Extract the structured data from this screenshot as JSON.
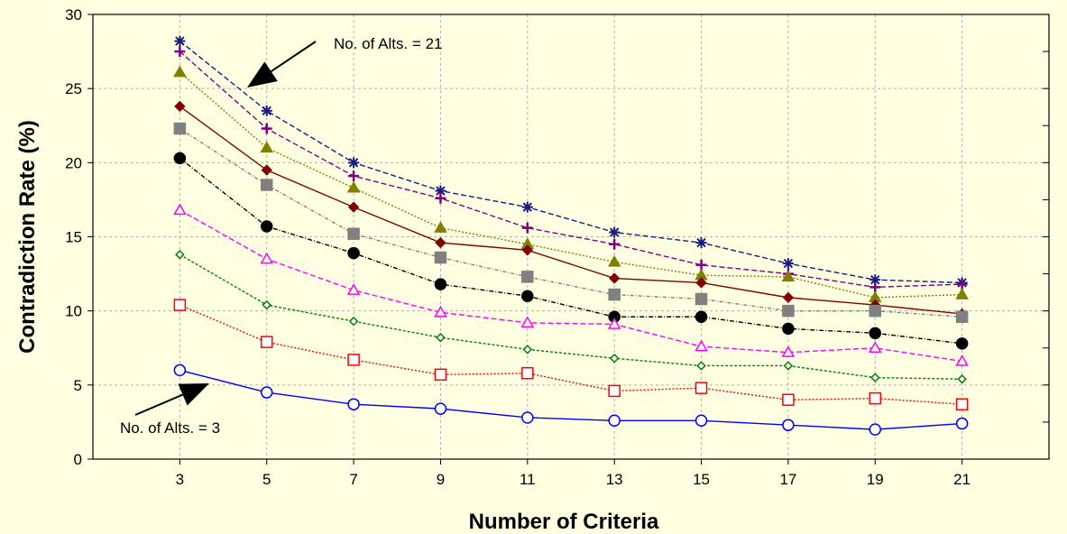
{
  "chart_data": {
    "type": "line",
    "xlabel": "Number of Criteria",
    "ylabel": "Contradiction Rate (%)",
    "x": [
      3,
      5,
      7,
      9,
      11,
      13,
      15,
      17,
      19,
      21
    ],
    "xlim": [
      1,
      23
    ],
    "ylim": [
      0,
      30
    ],
    "yticks": [
      0,
      5,
      10,
      15,
      20,
      25,
      30
    ],
    "grid": true,
    "series": [
      {
        "values": [
          28.2,
          23.5,
          20.0,
          18.1,
          17.0,
          15.3,
          14.6,
          13.2,
          12.1,
          11.9
        ],
        "color": "#1a1a80",
        "marker": "asterisk",
        "dash": "6 3"
      },
      {
        "values": [
          27.5,
          22.3,
          19.1,
          17.6,
          15.6,
          14.5,
          13.1,
          12.5,
          11.6,
          11.8
        ],
        "color": "#800080",
        "marker": "plus",
        "dash": "6 3"
      },
      {
        "values": [
          26.1,
          21.0,
          18.3,
          15.6,
          14.5,
          13.3,
          12.4,
          12.3,
          10.9,
          11.1
        ],
        "color": "#808000",
        "marker": "triangle",
        "dash": "2 2"
      },
      {
        "values": [
          23.8,
          19.5,
          17.0,
          14.6,
          14.1,
          12.2,
          11.9,
          10.9,
          10.4,
          9.8
        ],
        "color": "#800000",
        "marker": "diamond",
        "dash": ""
      },
      {
        "values": [
          22.3,
          18.5,
          15.2,
          13.6,
          12.3,
          11.1,
          10.8,
          10.0,
          10.0,
          9.6
        ],
        "color": "#808080",
        "marker": "square",
        "dash": "4 2 1 2"
      },
      {
        "values": [
          20.3,
          15.7,
          13.9,
          11.8,
          11.0,
          9.6,
          9.6,
          8.8,
          8.5,
          7.8
        ],
        "color": "#000000",
        "marker": "circle",
        "dash": "5 2 1 2"
      },
      {
        "values": [
          16.8,
          13.5,
          11.4,
          9.9,
          9.2,
          9.1,
          7.6,
          7.2,
          7.5,
          6.6
        ],
        "color": "#ff00ff",
        "marker": "triangle-open",
        "dash": "6 3"
      },
      {
        "values": [
          13.8,
          10.4,
          9.3,
          8.2,
          7.4,
          6.8,
          6.3,
          6.3,
          5.5,
          5.4
        ],
        "color": "#008000",
        "marker": "diamond-open",
        "dash": "3 2"
      },
      {
        "values": [
          10.4,
          7.9,
          6.7,
          5.7,
          5.8,
          4.6,
          4.8,
          4.0,
          4.1,
          3.7
        ],
        "color": "#ff0000",
        "marker": "square-open",
        "dash": "2 2"
      },
      {
        "values": [
          6.0,
          4.5,
          3.7,
          3.4,
          2.8,
          2.6,
          2.6,
          2.3,
          2.0,
          2.4
        ],
        "color": "#0000ff",
        "marker": "circle-open",
        "dash": ""
      }
    ],
    "annotations": [
      {
        "text": "No. of Alts. = 21"
      },
      {
        "text": "No. of Alts. = 3"
      }
    ]
  }
}
